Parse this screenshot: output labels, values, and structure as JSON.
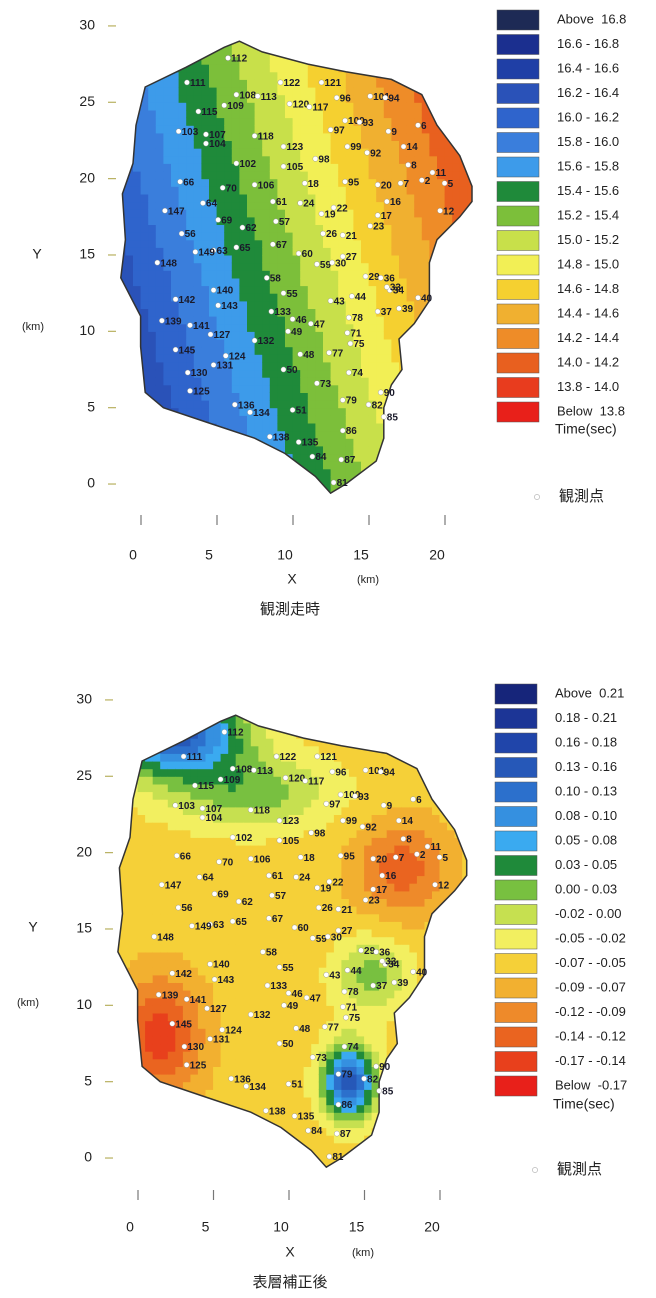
{
  "chart_data": [
    {
      "type": "contour",
      "caption": "観測走時",
      "x_label": "X",
      "x_unit": "(km)",
      "y_label": "Y",
      "y_unit": "(km)",
      "xlim": [
        -1,
        22
      ],
      "ylim": [
        -1,
        31
      ],
      "xticks": [
        0,
        5,
        10,
        15,
        20
      ],
      "yticks": [
        0,
        5,
        10,
        15,
        20,
        25,
        30
      ],
      "legend_title": "Time(sec)",
      "station_legend": "観測点",
      "legend": [
        {
          "label": "Above  16.8",
          "color": "#1d2a55"
        },
        {
          "label": "16.6 - 16.8",
          "color": "#1b2f8f"
        },
        {
          "label": "16.4 - 16.6",
          "color": "#1f3fa6"
        },
        {
          "label": "16.2 - 16.4",
          "color": "#2a52b8"
        },
        {
          "label": "16.0 - 16.2",
          "color": "#2f64cc"
        },
        {
          "label": "15.8 - 16.0",
          "color": "#3a7edc"
        },
        {
          "label": "15.6 - 15.8",
          "color": "#3d9bea"
        },
        {
          "label": "15.4 - 15.6",
          "color": "#1f8a3a"
        },
        {
          "label": "15.2 - 15.4",
          "color": "#7cbf3a"
        },
        {
          "label": "15.0 - 15.2",
          "color": "#c8e04a"
        },
        {
          "label": "14.8 - 15.0",
          "color": "#f2ef55"
        },
        {
          "label": "14.6 - 14.8",
          "color": "#f5d030"
        },
        {
          "label": "14.4 - 14.6",
          "color": "#f0b030"
        },
        {
          "label": "14.2 - 14.4",
          "color": "#ee8c28"
        },
        {
          "label": "14.0 - 14.2",
          "color": "#e8601f"
        },
        {
          "label": "13.8 - 14.0",
          "color": "#e83c1e"
        },
        {
          "label": "Below  13.8",
          "color": "#e8201a"
        }
      ]
    },
    {
      "type": "contour",
      "caption": "表層補正後",
      "x_label": "X",
      "x_unit": "(km)",
      "y_label": "Y",
      "y_unit": "(km)",
      "xlim": [
        -1,
        22
      ],
      "ylim": [
        -1,
        31
      ],
      "xticks": [
        0,
        5,
        10,
        15,
        20
      ],
      "yticks": [
        0,
        5,
        10,
        15,
        20,
        25,
        30
      ],
      "legend_title": "Time(sec)",
      "station_legend": "観測点",
      "legend": [
        {
          "label": "Above  0.21",
          "color": "#16257a"
        },
        {
          "label": "0.18 - 0.21",
          "color": "#1c3596"
        },
        {
          "label": "0.16 - 0.18",
          "color": "#2045aa"
        },
        {
          "label": "0.13 - 0.16",
          "color": "#2658b8"
        },
        {
          "label": "0.10 - 0.13",
          "color": "#2c70cc"
        },
        {
          "label": "0.08 - 0.10",
          "color": "#3590e0"
        },
        {
          "label": "0.05 - 0.08",
          "color": "#3aaaf0"
        },
        {
          "label": "0.03 - 0.05",
          "color": "#1f8a3a"
        },
        {
          "label": "0.00 - 0.03",
          "color": "#78c040"
        },
        {
          "label": "-0.02 - 0.00",
          "color": "#c6e050"
        },
        {
          "label": "-0.05 - -0.02",
          "color": "#f2ef60"
        },
        {
          "label": "-0.07 - -0.05",
          "color": "#f5d038"
        },
        {
          "label": "-0.09 - -0.07",
          "color": "#f2b030"
        },
        {
          "label": "-0.12 - -0.09",
          "color": "#ee8a2a"
        },
        {
          "label": "-0.14 - -0.12",
          "color": "#ea6420"
        },
        {
          "label": "-0.17 - -0.14",
          "color": "#e8401c"
        },
        {
          "label": "Below  -0.17",
          "color": "#e8201a"
        }
      ]
    }
  ],
  "stations": {
    "labels": [
      112,
      111,
      115,
      108,
      113,
      122,
      121,
      96,
      101,
      94,
      109,
      120,
      117,
      103,
      107,
      104,
      118,
      97,
      100,
      93,
      6,
      123,
      99,
      92,
      9,
      14,
      102,
      105,
      98,
      8,
      11,
      66,
      70,
      106,
      18,
      95,
      20,
      7,
      2,
      5,
      147,
      64,
      61,
      24,
      22,
      16,
      12,
      69,
      62,
      57,
      19,
      17,
      56,
      63,
      65,
      67,
      26,
      21,
      23,
      148,
      149,
      60,
      27,
      59,
      58,
      30,
      29,
      36,
      34,
      40,
      140,
      142,
      55,
      43,
      44,
      33,
      143,
      133,
      37,
      39,
      139,
      141,
      46,
      47,
      78,
      145,
      127,
      49,
      71,
      75,
      124,
      132,
      48,
      77,
      131,
      130,
      50,
      74,
      73,
      90,
      125,
      79,
      82,
      85,
      51,
      136,
      134,
      86,
      138,
      135,
      84,
      87,
      81
    ],
    "x": [
      6.25,
      3.55,
      4.3,
      6.8,
      8.2,
      9.7,
      12.4,
      13.4,
      15.6,
      16.6,
      6.0,
      10.3,
      11.6,
      3.0,
      4.8,
      4.8,
      8.0,
      13.0,
      13.95,
      14.9,
      18.75,
      9.9,
      14.1,
      15.4,
      16.8,
      17.8,
      6.8,
      9.9,
      12.0,
      18.1,
      19.7,
      3.1,
      5.9,
      8.0,
      11.3,
      13.95,
      16.1,
      17.6,
      19.0,
      20.5,
      2.1,
      4.6,
      9.2,
      11.0,
      13.2,
      16.7,
      20.2,
      5.6,
      7.2,
      9.4,
      12.4,
      16.1,
      3.2,
      5.3,
      6.8,
      9.2,
      12.5,
      13.8,
      15.6,
      1.6,
      4.1,
      10.9,
      13.8,
      12.1,
      8.8,
      13.1,
      15.3,
      16.3,
      16.9,
      18.75,
      5.3,
      2.8,
      9.9,
      13.0,
      14.4,
      16.7,
      5.6,
      9.1,
      16.1,
      17.5,
      1.9,
      3.75,
      10.5,
      11.7,
      14.2,
      2.8,
      5.1,
      10.2,
      14.1,
      14.3,
      6.1,
      8.0,
      11.0,
      12.9,
      5.3,
      3.6,
      9.9,
      14.2,
      12.1,
      16.3,
      3.75,
      13.8,
      15.5,
      16.5,
      10.5,
      6.7,
      7.7,
      13.8,
      9.0,
      10.9,
      11.8,
      13.7,
      13.2
    ],
    "y": [
      27.9,
      26.3,
      24.4,
      25.5,
      25.4,
      26.3,
      26.3,
      25.3,
      25.4,
      25.3,
      24.8,
      24.9,
      24.7,
      23.1,
      22.9,
      22.3,
      22.8,
      23.2,
      23.8,
      23.7,
      23.5,
      22.1,
      22.1,
      21.7,
      23.1,
      22.1,
      21.0,
      20.8,
      21.3,
      20.9,
      20.4,
      19.8,
      19.4,
      19.6,
      19.7,
      19.8,
      19.6,
      19.7,
      19.9,
      19.7,
      17.9,
      18.4,
      18.5,
      18.4,
      18.1,
      18.5,
      17.9,
      17.3,
      16.8,
      17.2,
      17.7,
      17.6,
      16.4,
      15.3,
      15.5,
      15.7,
      16.4,
      16.3,
      16.9,
      14.5,
      15.2,
      15.1,
      14.9,
      14.4,
      13.5,
      14.5,
      13.6,
      13.5,
      12.7,
      12.2,
      12.7,
      12.1,
      12.5,
      12.0,
      12.3,
      12.9,
      11.7,
      11.3,
      11.3,
      11.5,
      10.7,
      10.4,
      10.8,
      10.5,
      10.9,
      8.8,
      9.8,
      10.0,
      9.9,
      9.2,
      8.4,
      9.4,
      8.5,
      8.6,
      7.8,
      7.3,
      7.5,
      7.3,
      6.6,
      6.0,
      6.1,
      5.5,
      5.2,
      4.4,
      4.85,
      5.2,
      4.7,
      3.5,
      3.1,
      2.75,
      1.8,
      1.6,
      0.1
    ]
  }
}
